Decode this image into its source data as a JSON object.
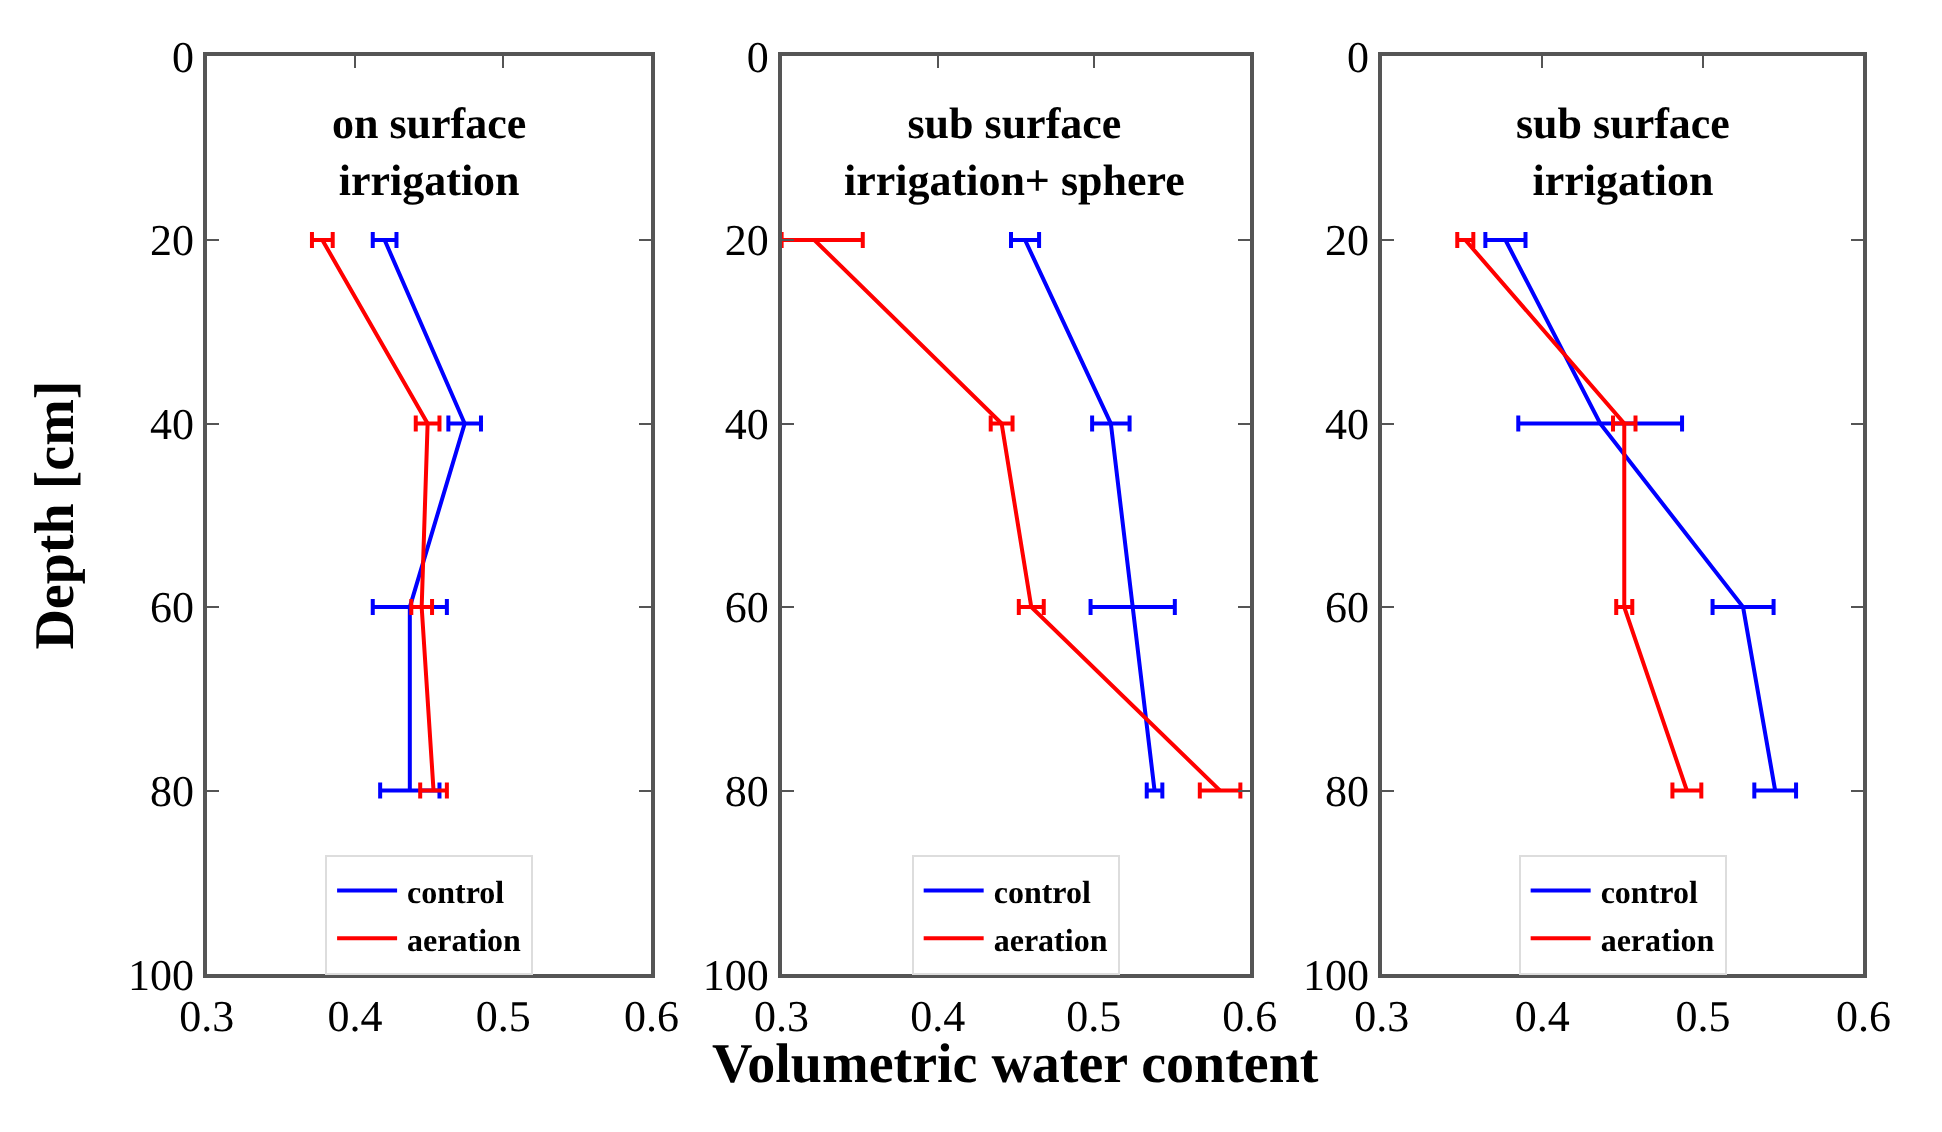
{
  "chart_data": [
    {
      "type": "line",
      "orientation": "horizontal",
      "title": "on surface\nirrigation",
      "ylabel": "Depth [cm]",
      "x": [
        20,
        40,
        60,
        80
      ],
      "xlim": [
        0.3,
        0.6
      ],
      "xticks": [
        0.3,
        0.4,
        0.5,
        0.6
      ],
      "ylim": [
        100,
        0
      ],
      "yticks": [
        0,
        20,
        40,
        60,
        80,
        100
      ],
      "legend": "bottom",
      "grid": false,
      "series": [
        {
          "name": "control",
          "color": "#0000ff",
          "values": [
            0.42,
            0.474,
            0.437,
            0.437
          ],
          "errors": [
            0.008,
            0.011,
            0.025,
            0.02
          ]
        },
        {
          "name": "aeration",
          "color": "#ff0000",
          "values": [
            0.378,
            0.449,
            0.445,
            0.453
          ],
          "errors": [
            0.007,
            0.008,
            0.007,
            0.009
          ]
        }
      ]
    },
    {
      "type": "line",
      "orientation": "horizontal",
      "title": "sub surface\nirrigation+ sphere",
      "xlabel": "Volumetric water content",
      "x": [
        20,
        40,
        60,
        80
      ],
      "xlim": [
        0.3,
        0.6
      ],
      "xticks": [
        0.3,
        0.4,
        0.5,
        0.6
      ],
      "ylim": [
        100,
        0
      ],
      "yticks": [
        0,
        20,
        40,
        60,
        80,
        100
      ],
      "legend": "bottom",
      "grid": false,
      "series": [
        {
          "name": "control",
          "color": "#0000ff",
          "values": [
            0.456,
            0.511,
            0.525,
            0.539
          ],
          "errors": [
            0.009,
            0.012,
            0.027,
            0.005
          ]
        },
        {
          "name": "aeration",
          "color": "#ff0000",
          "values": [
            0.321,
            0.441,
            0.46,
            0.581
          ],
          "errors": [
            [
              0.3,
              0.352
            ],
            0.007,
            0.008,
            0.013
          ]
        }
      ]
    },
    {
      "type": "line",
      "orientation": "horizontal",
      "title": "sub surface\nirrigation",
      "x": [
        20,
        40,
        60,
        80
      ],
      "xlim": [
        0.3,
        0.6
      ],
      "xticks": [
        0.3,
        0.4,
        0.5,
        0.6
      ],
      "ylim": [
        100,
        0
      ],
      "yticks": [
        0,
        20,
        40,
        60,
        80,
        100
      ],
      "legend": "bottom",
      "grid": false,
      "series": [
        {
          "name": "control",
          "color": "#0000ff",
          "values": [
            0.377,
            0.436,
            0.525,
            0.545
          ],
          "errors": [
            0.0125,
            0.051,
            0.019,
            0.013
          ]
        },
        {
          "name": "aeration",
          "color": "#ff0000",
          "values": [
            0.352,
            0.451,
            0.451,
            0.49
          ],
          "errors": [
            0.005,
            0.007,
            0.005,
            0.009
          ]
        }
      ]
    }
  ]
}
